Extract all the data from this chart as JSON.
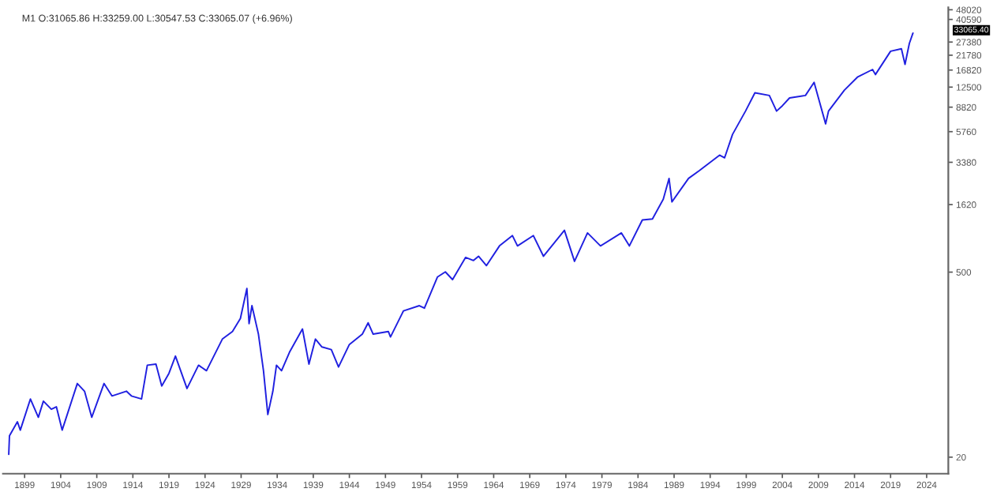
{
  "chart_data": {
    "type": "line",
    "title": "M1 O:31065.86 H:33259.00 L:30547.53 C:33065.07 (+6.96%)",
    "x": [
      1896.8,
      1896.9,
      1898.0,
      1898.4,
      1899.8,
      1900.9,
      1901.6,
      1902.7,
      1903.4,
      1904.2,
      1906.3,
      1907.3,
      1908.3,
      1910.0,
      1911.1,
      1913.1,
      1913.8,
      1915.2,
      1916.0,
      1917.2,
      1918.0,
      1919.0,
      1919.9,
      1921.5,
      1923.1,
      1924.2,
      1926.4,
      1927.8,
      1928.9,
      1929.8,
      1930.1,
      1930.5,
      1931.4,
      1932.1,
      1932.7,
      1933.4,
      1933.9,
      1934.6,
      1935.7,
      1937.5,
      1938.4,
      1939.3,
      1940.2,
      1941.5,
      1942.5,
      1944.0,
      1945.8,
      1946.6,
      1947.3,
      1949.4,
      1949.7,
      1951.5,
      1953.7,
      1954.4,
      1956.2,
      1957.3,
      1958.3,
      1960.1,
      1961.2,
      1961.9,
      1963.0,
      1964.8,
      1966.6,
      1967.3,
      1969.5,
      1970.9,
      1973.8,
      1975.2,
      1977.0,
      1978.8,
      1981.7,
      1982.8,
      1984.6,
      1986.0,
      1987.5,
      1988.3,
      1988.7,
      1991.0,
      1992.5,
      1995.3,
      1996.0,
      1997.1,
      1998.9,
      2000.2,
      2002.2,
      2003.2,
      2004.0,
      2005.0,
      2007.2,
      2008.4,
      2010.0,
      2010.4,
      2012.6,
      2014.4,
      2016.5,
      2016.9,
      2019.0,
      2020.5,
      2021.0,
      2021.6,
      2022.1
    ],
    "series": [
      {
        "color": "#2020e0",
        "values": [
          21,
          29,
          37,
          32,
          55,
          40,
          53,
          46,
          48,
          32,
          72,
          63,
          40,
          72,
          58,
          63,
          58,
          55,
          99,
          101,
          69,
          86,
          116,
          66,
          99,
          90,
          156,
          178,
          223,
          376,
          204,
          279,
          170,
          90,
          42,
          63,
          99,
          90,
          124,
          186,
          101,
          156,
          136,
          130,
          96,
          142,
          170,
          207,
          170,
          178,
          162,
          255,
          279,
          267,
          459,
          502,
          439,
          646,
          612,
          659,
          560,
          789,
          944,
          789,
          944,
          659,
          1035,
          603,
          989,
          789,
          989,
          789,
          1239,
          1262,
          1778,
          2553,
          1698,
          2553,
          2924,
          3828,
          3656,
          5495,
          8241,
          11324,
          10814,
          8241,
          9036,
          10354,
          10814,
          13583,
          6592,
          8241,
          11858,
          14859,
          16982,
          15560,
          23335,
          24380,
          18578,
          26730,
          31990
        ]
      }
    ],
    "xlim": [
      1896,
      2027
    ],
    "xticks": [
      1899,
      1904,
      1909,
      1914,
      1919,
      1924,
      1929,
      1934,
      1939,
      1944,
      1949,
      1954,
      1959,
      1964,
      1969,
      1974,
      1979,
      1984,
      1989,
      1994,
      1999,
      2004,
      2009,
      2014,
      2019,
      2024
    ],
    "ylim": [
      15,
      50000
    ],
    "log": true,
    "yticks": [
      20,
      500,
      1620,
      3380,
      5760,
      8820,
      12500,
      16820,
      21780,
      27380,
      40590,
      48020
    ],
    "annotations": [
      "33065.40"
    ],
    "grid": false,
    "legend": false,
    "marker": "none",
    "line_style": "solid"
  }
}
